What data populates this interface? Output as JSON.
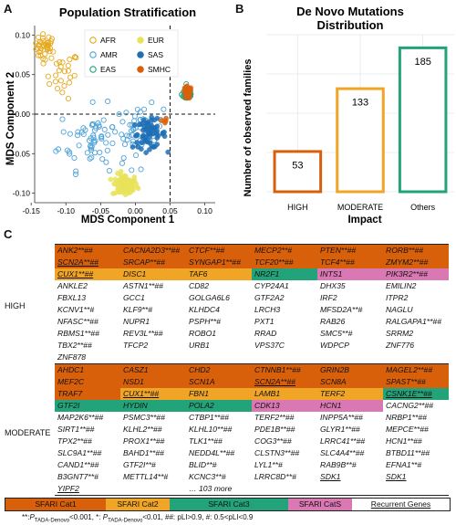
{
  "panel_a": {
    "letter": "A",
    "chart_data": {
      "type": "scatter",
      "title": "Population Stratification",
      "xlabel": "MDS Component 1",
      "ylabel": "MDS Component 2",
      "xlim": [
        -0.145,
        0.115
      ],
      "ylim": [
        -0.112,
        0.112
      ],
      "xticks": [
        "-0.15",
        "-0.10",
        "-0.05",
        "0.00",
        "0.05",
        "0.10"
      ],
      "xtick_values": [
        -0.15,
        -0.1,
        -0.05,
        0.0,
        0.05,
        0.1
      ],
      "yticks": [
        "0.10",
        "0.05",
        "0.00",
        "-0.05",
        "-0.10"
      ],
      "ytick_values": [
        0.1,
        0.05,
        0.0,
        -0.05,
        -0.1
      ],
      "reference_lines": {
        "vertical_x": 0.05,
        "horizontal_y": 0.0,
        "style": "dashed"
      },
      "legend": {
        "placement": "top",
        "columns": 2
      },
      "series": [
        {
          "name": "AFR",
          "color": "#E6A81E",
          "hollow": true,
          "clusters": [
            {
              "x": -0.13,
              "y": 0.085,
              "sx": 0.008,
              "sy": 0.008,
              "n": 40
            },
            {
              "x": -0.105,
              "y": 0.05,
              "sx": 0.012,
              "sy": 0.015,
              "n": 25
            }
          ]
        },
        {
          "name": "EUR",
          "color": "#E9E35A",
          "hollow": false,
          "clusters": [
            {
              "x": -0.015,
              "y": -0.09,
              "sx": 0.009,
              "sy": 0.007,
              "n": 90
            }
          ]
        },
        {
          "name": "AMR",
          "color": "#4FA3D9",
          "hollow": true,
          "clusters": [
            {
              "x": -0.06,
              "y": -0.03,
              "sx": 0.025,
              "sy": 0.02,
              "n": 70
            },
            {
              "x": 0.01,
              "y": -0.02,
              "sx": 0.015,
              "sy": 0.015,
              "n": 50
            }
          ]
        },
        {
          "name": "SAS",
          "color": "#1F6FB5",
          "hollow": false,
          "clusters": [
            {
              "x": 0.02,
              "y": -0.025,
              "sx": 0.012,
              "sy": 0.009,
              "n": 60
            }
          ]
        },
        {
          "name": "EAS",
          "color": "#22A37A",
          "hollow": true,
          "clusters": [
            {
              "x": 0.075,
              "y": 0.025,
              "sx": 0.004,
              "sy": 0.004,
              "n": 40
            }
          ]
        },
        {
          "name": "SMHC",
          "color": "#D9600B",
          "hollow": false,
          "clusters": [
            {
              "x": 0.075,
              "y": 0.027,
              "sx": 0.003,
              "sy": 0.004,
              "n": 35
            },
            {
              "x": 0.04,
              "y": -0.01,
              "sx": 0.003,
              "sy": 0.003,
              "n": 4
            }
          ]
        }
      ]
    }
  },
  "panel_b": {
    "letter": "B",
    "chart_data": {
      "type": "bar",
      "title": "De Novo Mutations Distribution",
      "title_line1": "De Novo Mutations",
      "title_line2": "Distribution",
      "xlabel": "Impact",
      "ylabel": "Number of observed families",
      "categories": [
        "HIGH",
        "MODERATE",
        "Others"
      ],
      "values": [
        53,
        133,
        185
      ],
      "ylim": [
        0,
        200
      ],
      "colors": [
        "#D9600B",
        "#F0A526",
        "#22A37A"
      ],
      "style": "outlined bars, light grey grid"
    }
  },
  "panel_c": {
    "letter": "C",
    "high_label": "HIGH",
    "moderate_label": "MODERATE",
    "high": [
      [
        {
          "t": "ANK2**##",
          "c": "cat1"
        },
        {
          "t": "CACNA2D3**##",
          "c": "cat1"
        },
        {
          "t": "CTCF**##",
          "c": "cat1"
        },
        {
          "t": "MECP2**#",
          "c": "cat1"
        },
        {
          "t": "PTEN**##",
          "c": "cat1"
        },
        {
          "t": "RORB**##",
          "c": "cat1"
        }
      ],
      [
        {
          "t": "SCN2A**##",
          "c": "cat1",
          "u": true
        },
        {
          "t": "SRCAP**##",
          "c": "cat1"
        },
        {
          "t": "SYNGAP1**##",
          "c": "cat1"
        },
        {
          "t": "TCF20**##",
          "c": "cat1"
        },
        {
          "t": "TCF4**##",
          "c": "cat1"
        },
        {
          "t": "ZMYM2**##",
          "c": "cat1"
        }
      ],
      [
        {
          "t": "CUX1**##",
          "c": "cat2",
          "u": true
        },
        {
          "t": "DISC1",
          "c": "cat2"
        },
        {
          "t": "TAF6",
          "c": "cat2"
        },
        {
          "t": "NR2F1",
          "c": "cat3"
        },
        {
          "t": "INTS1",
          "c": "cats"
        },
        {
          "t": "PIK3R2**##",
          "c": "cats"
        }
      ],
      [
        {
          "t": "ANKLE2"
        },
        {
          "t": "ASTN1**##"
        },
        {
          "t": "CD82"
        },
        {
          "t": "CYP24A1"
        },
        {
          "t": "DHX35"
        },
        {
          "t": "EMILIN2"
        }
      ],
      [
        {
          "t": "FBXL13"
        },
        {
          "t": "GCC1"
        },
        {
          "t": "GOLGA6L6"
        },
        {
          "t": "GTF2A2"
        },
        {
          "t": "IRF2"
        },
        {
          "t": "ITPR2"
        }
      ],
      [
        {
          "t": "KCNV1**#"
        },
        {
          "t": "KLF9**#"
        },
        {
          "t": "KLHDC4"
        },
        {
          "t": "LRCH3"
        },
        {
          "t": "MFSD2A**#"
        },
        {
          "t": "NAGLU"
        }
      ],
      [
        {
          "t": "NFASC**##"
        },
        {
          "t": "NUPR1"
        },
        {
          "t": "PSPH**#"
        },
        {
          "t": "PXT1"
        },
        {
          "t": "RAB26"
        },
        {
          "t": "RALGAPA1**##"
        }
      ],
      [
        {
          "t": "RBMS1**##"
        },
        {
          "t": "REV3L**##"
        },
        {
          "t": "ROBO1"
        },
        {
          "t": "RRAD"
        },
        {
          "t": "SMC5**#"
        },
        {
          "t": "SRRM2"
        }
      ],
      [
        {
          "t": "TBX2**##"
        },
        {
          "t": "TFCP2"
        },
        {
          "t": "URB1"
        },
        {
          "t": "VPS37C"
        },
        {
          "t": "WDPCP"
        },
        {
          "t": "ZNF776"
        }
      ],
      [
        {
          "t": "ZNF878"
        },
        {
          "t": ""
        },
        {
          "t": ""
        },
        {
          "t": ""
        },
        {
          "t": ""
        },
        {
          "t": ""
        }
      ]
    ],
    "moderate": [
      [
        {
          "t": "AHDC1",
          "c": "cat1"
        },
        {
          "t": "CASZ1",
          "c": "cat1"
        },
        {
          "t": "CHD2",
          "c": "cat1"
        },
        {
          "t": "CTNNB1**##",
          "c": "cat1"
        },
        {
          "t": "GRIN2B",
          "c": "cat1"
        },
        {
          "t": "MAGEL2**##",
          "c": "cat1"
        }
      ],
      [
        {
          "t": "MEF2C",
          "c": "cat1"
        },
        {
          "t": "NSD1",
          "c": "cat1"
        },
        {
          "t": "SCN1A",
          "c": "cat1"
        },
        {
          "t": "SCN2A**##",
          "c": "cat1",
          "u": true
        },
        {
          "t": "SCN8A",
          "c": "cat1"
        },
        {
          "t": "SPAST**##",
          "c": "cat1"
        }
      ],
      [
        {
          "t": "TRAF7",
          "c": "cat1"
        },
        {
          "t": "CUX1**##",
          "c": "cat2",
          "u": true
        },
        {
          "t": "FBN1",
          "c": "cat2"
        },
        {
          "t": "LAMB1",
          "c": "cat2"
        },
        {
          "t": "TERF2",
          "c": "cat2"
        },
        {
          "t": "CSNK1E**##",
          "c": "cat3",
          "u": true
        }
      ],
      [
        {
          "t": "GTF2I",
          "c": "cat3"
        },
        {
          "t": "HYDIN",
          "c": "cat3"
        },
        {
          "t": "POLA2",
          "c": "cat3"
        },
        {
          "t": "CDK13",
          "c": "cats"
        },
        {
          "t": "HCN1",
          "c": "cats"
        },
        {
          "t": "CACNG2**##"
        }
      ],
      [
        {
          "t": "MAP2K6**##"
        },
        {
          "t": "PSMC3**##"
        },
        {
          "t": "CTBP1**##"
        },
        {
          "t": "TERF2**##"
        },
        {
          "t": "INPP5A**##"
        },
        {
          "t": "NRBP1**##"
        }
      ],
      [
        {
          "t": "SIRT1**##"
        },
        {
          "t": "KLHL2**##"
        },
        {
          "t": "KLHL10**##"
        },
        {
          "t": "PDE1B**##"
        },
        {
          "t": "GLYR1**##"
        },
        {
          "t": "MEPCE**##"
        }
      ],
      [
        {
          "t": "TPX2**##"
        },
        {
          "t": "PROX1**##"
        },
        {
          "t": "TLK1**##"
        },
        {
          "t": "COG3**##"
        },
        {
          "t": "LRRC41**##"
        },
        {
          "t": "HCN1**##"
        }
      ],
      [
        {
          "t": "SLC9A1**##"
        },
        {
          "t": "BAHD1**##"
        },
        {
          "t": "NEDD4L**##"
        },
        {
          "t": "CLSTN3**##"
        },
        {
          "t": "SLC4A4**##"
        },
        {
          "t": "BTBD11**##"
        }
      ],
      [
        {
          "t": "CAND1**##"
        },
        {
          "t": "GTF2I**#"
        },
        {
          "t": "BLID**#"
        },
        {
          "t": "LYL1**#"
        },
        {
          "t": "RAB9B**#"
        },
        {
          "t": "EFNA1**#"
        }
      ],
      [
        {
          "t": "B3GNT7**#"
        },
        {
          "t": "METTL14**#"
        },
        {
          "t": "KCNC3**#"
        },
        {
          "t": "LRRC8D**#"
        },
        {
          "t": "SDK1",
          "u": true
        },
        {
          "t": "SDK1",
          "u": true
        }
      ],
      [
        {
          "t": "YIPF2",
          "u": true
        },
        {
          "t": ""
        },
        {
          "t": "… 103 more"
        },
        {
          "t": ""
        },
        {
          "t": ""
        },
        {
          "t": ""
        }
      ]
    ],
    "legend": [
      {
        "label": "SFARI Cat1",
        "c": "cat1"
      },
      {
        "label": "SFARI Cat2",
        "c": "cat2"
      },
      {
        "label": "SFARI Cat3",
        "c": "cat3"
      },
      {
        "label": "SFARI CatS",
        "c": "cats"
      },
      {
        "label": "Recurrent Genes",
        "c": "",
        "u": true
      }
    ],
    "footnote": "**:P(TADA-Denovo)<0.001, *: P(TADA-Denovo)<0.01, ##: pLI>0.9, #: 0.5<pLI<0.9",
    "footnote_parts": {
      "a": "**:",
      "b": "P",
      "c": "TADA-Denovo",
      "d": "<0.001, *: ",
      "e": "P",
      "f": "TADA-Denovo",
      "g": "<0.01, ##: pLI>0.9, #: 0.5<pLI<0.9"
    }
  }
}
